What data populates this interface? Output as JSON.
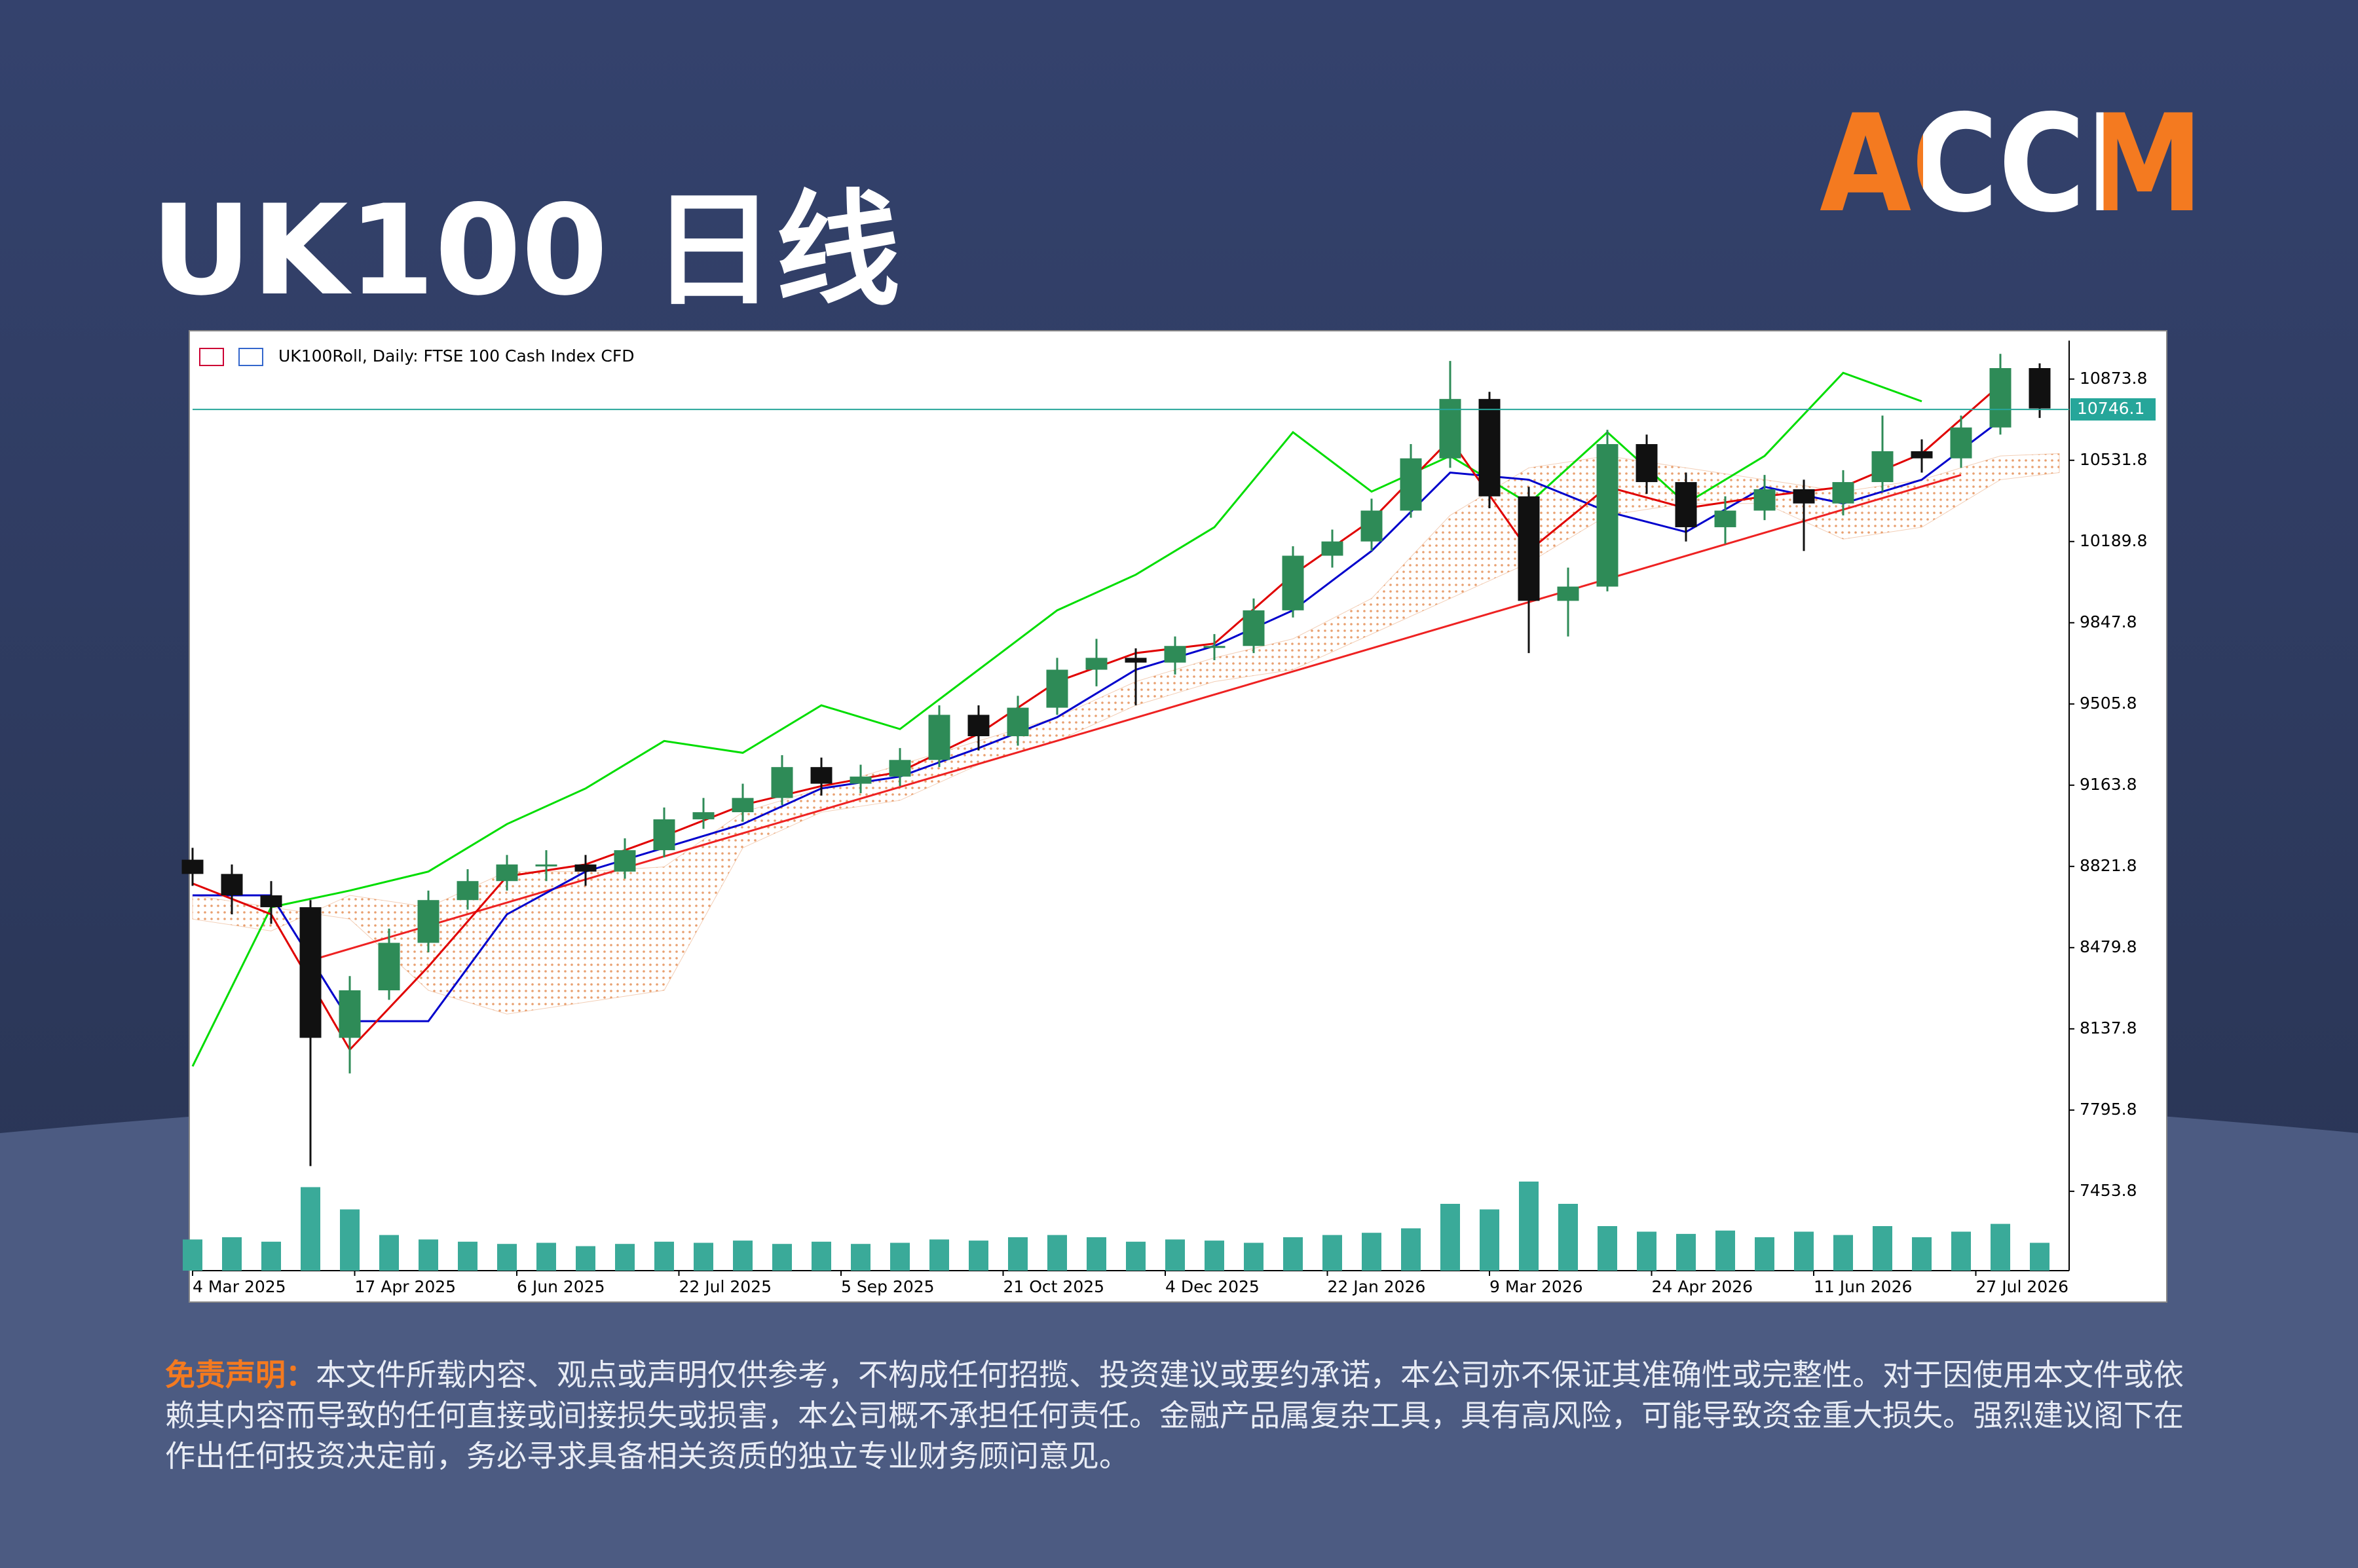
{
  "header": {
    "title": "UK100 日线",
    "logo": "ACCM"
  },
  "disclaimer": {
    "label": "免责声明：",
    "text": "本文件所载内容、观点或声明仅供参考，不构成任何招揽、投资建议或要约承诺，本公司亦不保证其准确性或完整性。对于因使用本文件或依赖其内容而导致的任何直接或间接损失或损害，本公司概不承担任何责任。金融产品属复杂工具，具有高风险，可能导致资金重大损失。强烈建议阁下在作出任何投资决定前，务必寻求具备相关资质的独立专业财务顾问意见。"
  },
  "chart_data": {
    "type": "candlestick",
    "title": "UK100Roll, Daily:  FTSE 100 Cash Index CFD",
    "up_color": "#2e8b57",
    "down_color": "#111111",
    "x": [
      0,
      8,
      16,
      24,
      32,
      40,
      48,
      56,
      64,
      72,
      80,
      88,
      96,
      104,
      112,
      120,
      128,
      136,
      144,
      152,
      160,
      168,
      176,
      184,
      192,
      200,
      208,
      216,
      224,
      232,
      240,
      248,
      256,
      264,
      272,
      280,
      288,
      296,
      304,
      312,
      320,
      328,
      336,
      344,
      352,
      360,
      368,
      376
    ],
    "open": [
      8850,
      8790,
      8700,
      8650,
      8100,
      8300,
      8500,
      8680,
      8760,
      8830,
      8830,
      8800,
      8890,
      9020,
      9050,
      9110,
      9240,
      9170,
      9200,
      9270,
      9460,
      9370,
      9490,
      9650,
      9700,
      9680,
      9750,
      9750,
      9900,
      10130,
      10190,
      10320,
      10540,
      10790,
      10380,
      9940,
      10000,
      10600,
      10440,
      10250,
      10320,
      10410,
      10350,
      10440,
      10570,
      10540,
      10670,
      10920
    ],
    "high": [
      8900,
      8830,
      8760,
      8680,
      8360,
      8560,
      8720,
      8810,
      8870,
      8890,
      8870,
      8940,
      9070,
      9110,
      9170,
      9290,
      9280,
      9250,
      9320,
      9500,
      9500,
      9540,
      9700,
      9780,
      9740,
      9790,
      9800,
      9950,
      10170,
      10240,
      10370,
      10600,
      10950,
      10820,
      10420,
      10080,
      10660,
      10640,
      10480,
      10380,
      10470,
      10450,
      10490,
      10720,
      10620,
      10720,
      10980,
      10940
    ],
    "low": [
      8740,
      8620,
      8580,
      7560,
      7950,
      8260,
      8460,
      8640,
      8720,
      8760,
      8740,
      8770,
      8860,
      8980,
      9010,
      9080,
      9120,
      9130,
      9160,
      9240,
      9310,
      9330,
      9460,
      9580,
      9500,
      9630,
      9690,
      9720,
      9870,
      10080,
      10150,
      10290,
      10500,
      10330,
      9720,
      9790,
      9980,
      10390,
      10190,
      10180,
      10280,
      10150,
      10300,
      10400,
      10480,
      10500,
      10640,
      10710
    ],
    "close": [
      8790,
      8700,
      8650,
      8100,
      8300,
      8500,
      8680,
      8760,
      8830,
      8830,
      8800,
      8890,
      9020,
      9050,
      9110,
      9240,
      9170,
      9200,
      9270,
      9460,
      9370,
      9490,
      9650,
      9700,
      9680,
      9750,
      9750,
      9900,
      10130,
      10190,
      10320,
      10540,
      10790,
      10380,
      9940,
      10000,
      10600,
      10440,
      10250,
      10320,
      10410,
      10350,
      10440,
      10570,
      10540,
      10670,
      10920,
      10750
    ],
    "lines": [
      {
        "color": "#00dd00",
        "x": [
          0,
          16,
          32,
          48,
          64,
          80,
          96,
          112,
          128,
          144,
          160,
          176,
          192,
          208,
          224,
          240,
          256,
          272,
          288,
          304,
          320,
          336,
          352
        ],
        "values": [
          7980,
          8650,
          8720,
          8800,
          9000,
          9150,
          9350,
          9300,
          9500,
          9400,
          9650,
          9900,
          10050,
          10250,
          10650,
          10400,
          10550,
          10350,
          10650,
          10350,
          10550,
          10900,
          10780
        ]
      },
      {
        "color": "#0000cc",
        "x": [
          0,
          16,
          32,
          48,
          64,
          80,
          96,
          112,
          128,
          144,
          160,
          176,
          192,
          208,
          224,
          240,
          256,
          272,
          288,
          304,
          320,
          336,
          352,
          368
        ],
        "values": [
          8700,
          8700,
          8170,
          8170,
          8620,
          8800,
          8900,
          9000,
          9150,
          9200,
          9320,
          9450,
          9650,
          9750,
          9900,
          10150,
          10480,
          10450,
          10316,
          10230,
          10420,
          10350,
          10450,
          10700
        ]
      },
      {
        "color": "#e00000",
        "x": [
          0,
          16,
          32,
          48,
          64,
          80,
          96,
          112,
          128,
          144,
          160,
          176,
          192,
          208,
          224,
          240,
          256,
          272,
          288,
          304,
          320,
          336,
          352,
          368
        ],
        "values": [
          8750,
          8620,
          8050,
          8400,
          8780,
          8830,
          8950,
          9080,
          9160,
          9220,
          9380,
          9600,
          9720,
          9760,
          10050,
          10280,
          10620,
          10150,
          10420,
          10330,
          10380,
          10420,
          10560,
          10850
        ]
      }
    ],
    "cloud": {
      "color": "#e8a070",
      "x": [
        0,
        16,
        32,
        48,
        64,
        80,
        96,
        112,
        128,
        144,
        160,
        176,
        192,
        208,
        224,
        240,
        256,
        272,
        288,
        304,
        320,
        336,
        352,
        368,
        380
      ],
      "span_a": [
        8700,
        8650,
        8600,
        8300,
        8200,
        8250,
        8300,
        8900,
        9050,
        9100,
        9250,
        9350,
        9500,
        9600,
        9650,
        9800,
        9950,
        10100,
        10300,
        10350,
        10350,
        10200,
        10250,
        10450,
        10480
      ],
      "span_b": [
        8600,
        8550,
        8700,
        8650,
        8800,
        8800,
        8820,
        9050,
        9150,
        9250,
        9350,
        9450,
        9600,
        9700,
        9780,
        9950,
        10300,
        10500,
        10550,
        10500,
        10450,
        10400,
        10450,
        10550,
        10560
      ]
    },
    "trendline": {
      "color": "#ee2222",
      "x": [
        23,
        360
      ],
      "values": [
        8420,
        10470
      ]
    },
    "volume": {
      "color": "#3aaa99",
      "ylim": [
        0,
        100
      ],
      "values": [
        28,
        30,
        26,
        75,
        55,
        32,
        28,
        26,
        24,
        25,
        22,
        24,
        26,
        25,
        27,
        24,
        26,
        24,
        25,
        28,
        27,
        30,
        32,
        30,
        26,
        28,
        27,
        25,
        30,
        32,
        34,
        38,
        60,
        55,
        80,
        60,
        40,
        35,
        33,
        36,
        30,
        35,
        32,
        40,
        30,
        35,
        42,
        25
      ]
    },
    "last_price": 10746.1,
    "last_price_color": "#26a69a",
    "xlim": [
      0,
      382
    ],
    "ylim": [
      7150,
      11000
    ],
    "yticks": [
      10873.8,
      10531.8,
      10189.8,
      9847.8,
      9505.8,
      9163.8,
      8821.8,
      8479.8,
      8137.8,
      7795.8,
      7453.8
    ],
    "xticks": [
      {
        "value": 0,
        "label": "4 Mar 2025"
      },
      {
        "value": 33,
        "label": "17 Apr 2025"
      },
      {
        "value": 66,
        "label": "6 Jun 2025"
      },
      {
        "value": 99,
        "label": "22 Jul 2025"
      },
      {
        "value": 132,
        "label": "5 Sep 2025"
      },
      {
        "value": 165,
        "label": "21 Oct 2025"
      },
      {
        "value": 198,
        "label": "4 Dec 2025"
      },
      {
        "value": 231,
        "label": "22 Jan 2026"
      },
      {
        "value": 264,
        "label": "9 Mar 2026"
      },
      {
        "value": 297,
        "label": "24 Apr 2026"
      },
      {
        "value": 330,
        "label": "11 Jun 2026"
      },
      {
        "value": 363,
        "label": "27 Jul 2026"
      }
    ]
  }
}
